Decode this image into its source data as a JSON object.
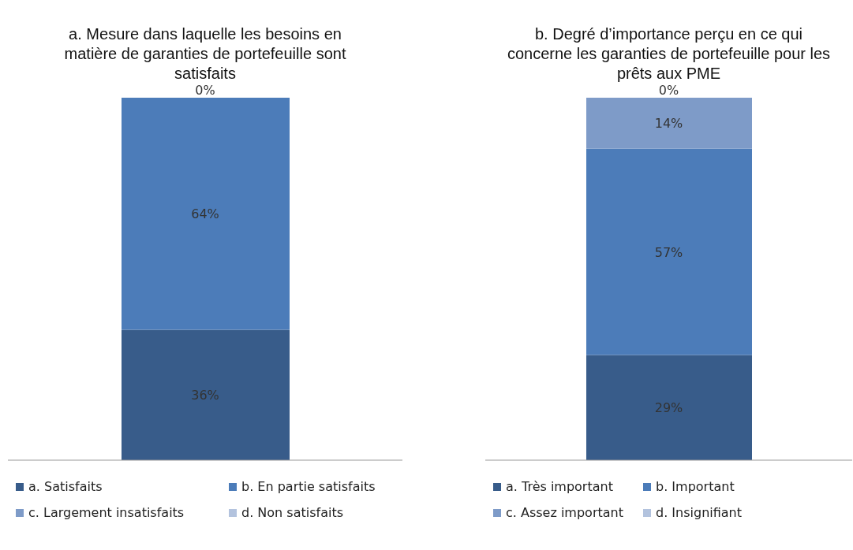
{
  "chart_data": [
    {
      "type": "bar",
      "title": "a.   Mesure dans laquelle les besoins en matière de garanties de portefeuille sont satisfaits",
      "categories": [
        null
      ],
      "stacked": true,
      "legend": "bottom",
      "tick_labels": false,
      "series": [
        {
          "name": "a. Satisfaits",
          "color": "#385c8a",
          "values": [
            36
          ],
          "value_labels": [
            "36%"
          ]
        },
        {
          "name": "b. En partie satisfaits",
          "color": "#4c7cb9",
          "values": [
            64
          ],
          "value_labels": [
            "64%"
          ]
        },
        {
          "name": "c. Largement insatisfaits",
          "color": "#7e9bc8",
          "values": [
            0
          ],
          "value_labels": [
            null
          ]
        },
        {
          "name": "d. Non satisfaits",
          "color": "#b3c3de",
          "values": [
            0
          ],
          "value_labels": [
            "0%"
          ]
        }
      ]
    },
    {
      "type": "bar",
      "title": "b.   Degré d’importance perçu en ce qui concerne les garanties de portefeuille pour les prêts aux PME",
      "categories": [
        null
      ],
      "stacked": true,
      "legend": "bottom",
      "tick_labels": false,
      "series": [
        {
          "name": "a. Très important",
          "color": "#385c8a",
          "values": [
            29
          ],
          "value_labels": [
            "29%"
          ]
        },
        {
          "name": "b. Important",
          "color": "#4c7cb9",
          "values": [
            57
          ],
          "value_labels": [
            "57%"
          ]
        },
        {
          "name": "c. Assez important",
          "color": "#7e9bc8",
          "values": [
            14
          ],
          "value_labels": [
            "14%"
          ]
        },
        {
          "name": "d. Insignifiant",
          "color": "#b3c3de",
          "values": [
            0
          ],
          "value_labels": [
            "0%"
          ]
        }
      ]
    }
  ]
}
